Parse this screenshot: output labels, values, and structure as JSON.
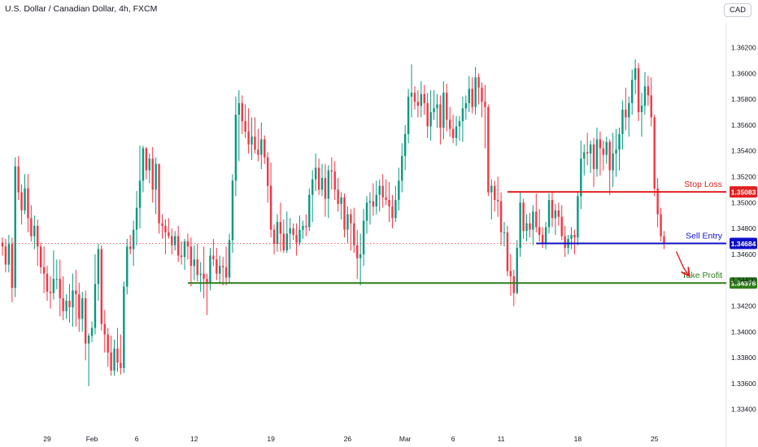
{
  "header": {
    "title": "U.S. Dollar / Canadian Dollar, 4h, FXCM",
    "currency": "CAD"
  },
  "colors": {
    "up": "#089981",
    "down": "#f23645",
    "stop_loss": "#e02020",
    "sell_entry": "#1010c8",
    "take_profit": "#2e7d1a",
    "arrow": "#e02020",
    "current_price_line": "#f23645",
    "axis_text": "#131722"
  },
  "chart_data": {
    "type": "candlestick",
    "symbol": "U.S. Dollar / Canadian Dollar",
    "timeframe": "4h",
    "source": "FXCM",
    "ylim": [
      1.3331,
      1.3631
    ],
    "y_ticks": [
      "1.36200",
      "1.36000",
      "1.35800",
      "1.35600",
      "1.35400",
      "1.35200",
      "1.35000",
      "1.34800",
      "1.34600",
      "1.34400",
      "1.34200",
      "1.34000",
      "1.33800",
      "1.33600",
      "1.33400"
    ],
    "x_ticks": [
      {
        "label": "29",
        "bar": 14
      },
      {
        "label": "Feb",
        "bar": 28
      },
      {
        "label": "6",
        "bar": 42
      },
      {
        "label": "12",
        "bar": 60
      },
      {
        "label": "19",
        "bar": 84
      },
      {
        "label": "26",
        "bar": 108
      },
      {
        "label": "Mar",
        "bar": 126
      },
      {
        "label": "6",
        "bar": 141
      },
      {
        "label": "11",
        "bar": 156
      },
      {
        "label": "18",
        "bar": 180
      },
      {
        "label": "25",
        "bar": 204
      }
    ],
    "levels": [
      {
        "name": "Stop Loss",
        "value": 1.35083,
        "label": "1.35083",
        "start_bar": 158,
        "color_key": "stop_loss"
      },
      {
        "name": "Sell Entry",
        "value": 1.34684,
        "label": "1.34684",
        "start_bar": 167,
        "color_key": "sell_entry"
      },
      {
        "name": "Take Profit",
        "value": 1.34378,
        "label": "1.34378",
        "start_bar": 58,
        "color_key": "take_profit"
      }
    ],
    "current_price": 1.34684,
    "bars": [
      [
        1.3469,
        1.3473,
        1.3459,
        1.3466
      ],
      [
        1.3466,
        1.3472,
        1.3446,
        1.3452
      ],
      [
        1.3452,
        1.3475,
        1.3446,
        1.3468
      ],
      [
        1.3468,
        1.3473,
        1.3423,
        1.3434
      ],
      [
        1.3434,
        1.3535,
        1.3427,
        1.3528
      ],
      [
        1.3528,
        1.3536,
        1.3502,
        1.3508
      ],
      [
        1.3508,
        1.3514,
        1.3483,
        1.3494
      ],
      [
        1.3494,
        1.3522,
        1.3491,
        1.3511
      ],
      [
        1.3511,
        1.3522,
        1.3477,
        1.3488
      ],
      [
        1.3488,
        1.3498,
        1.347,
        1.3474
      ],
      [
        1.3474,
        1.349,
        1.3464,
        1.3482
      ],
      [
        1.3482,
        1.3487,
        1.3451,
        1.3466
      ],
      [
        1.3466,
        1.3469,
        1.3445,
        1.345
      ],
      [
        1.345,
        1.3466,
        1.343,
        1.3445
      ],
      [
        1.3445,
        1.3451,
        1.3424,
        1.3431
      ],
      [
        1.3431,
        1.3443,
        1.3418,
        1.343
      ],
      [
        1.343,
        1.3463,
        1.3425,
        1.3441
      ],
      [
        1.3441,
        1.3456,
        1.3433,
        1.3441
      ],
      [
        1.3441,
        1.3456,
        1.3412,
        1.3426
      ],
      [
        1.3426,
        1.3443,
        1.3409,
        1.3416
      ],
      [
        1.3416,
        1.3429,
        1.341,
        1.3424
      ],
      [
        1.3424,
        1.3437,
        1.3407,
        1.3419
      ],
      [
        1.3419,
        1.3445,
        1.3404,
        1.3432
      ],
      [
        1.3432,
        1.3448,
        1.3404,
        1.3429
      ],
      [
        1.3429,
        1.3438,
        1.34,
        1.341
      ],
      [
        1.341,
        1.3431,
        1.34,
        1.3426
      ],
      [
        1.3426,
        1.3432,
        1.3378,
        1.3391
      ],
      [
        1.3391,
        1.3399,
        1.3358,
        1.3397
      ],
      [
        1.3397,
        1.3408,
        1.3392,
        1.3403
      ],
      [
        1.3403,
        1.346,
        1.3398,
        1.3437
      ],
      [
        1.3437,
        1.3468,
        1.3424,
        1.3464
      ],
      [
        1.3464,
        1.3467,
        1.3401,
        1.3406
      ],
      [
        1.3406,
        1.3417,
        1.3384,
        1.3398
      ],
      [
        1.3398,
        1.3403,
        1.3373,
        1.3384
      ],
      [
        1.3384,
        1.3397,
        1.3366,
        1.337
      ],
      [
        1.337,
        1.3394,
        1.3366,
        1.3387
      ],
      [
        1.3387,
        1.3403,
        1.3369,
        1.3376
      ],
      [
        1.3376,
        1.3398,
        1.3367,
        1.3372
      ],
      [
        1.3372,
        1.3439,
        1.3368,
        1.3435
      ],
      [
        1.3435,
        1.3472,
        1.3429,
        1.3466
      ],
      [
        1.3466,
        1.3475,
        1.346,
        1.3464
      ],
      [
        1.3464,
        1.3486,
        1.3451,
        1.3479
      ],
      [
        1.3479,
        1.3509,
        1.3467,
        1.3496
      ],
      [
        1.3496,
        1.3544,
        1.348,
        1.3517
      ],
      [
        1.3517,
        1.3544,
        1.3508,
        1.3542
      ],
      [
        1.3542,
        1.3543,
        1.3518,
        1.3525
      ],
      [
        1.3525,
        1.3538,
        1.3515,
        1.3534
      ],
      [
        1.3534,
        1.3543,
        1.35,
        1.351
      ],
      [
        1.351,
        1.3535,
        1.3491,
        1.353
      ],
      [
        1.353,
        1.353,
        1.3476,
        1.3484
      ],
      [
        1.3484,
        1.3491,
        1.3472,
        1.3482
      ],
      [
        1.3482,
        1.3487,
        1.346,
        1.3477
      ],
      [
        1.3477,
        1.3488,
        1.3472,
        1.3474
      ],
      [
        1.3474,
        1.348,
        1.346,
        1.3467
      ],
      [
        1.3467,
        1.3478,
        1.3463,
        1.3474
      ],
      [
        1.3474,
        1.3482,
        1.3454,
        1.3459
      ],
      [
        1.3459,
        1.347,
        1.3452,
        1.3458
      ],
      [
        1.3458,
        1.3472,
        1.3448,
        1.347
      ],
      [
        1.347,
        1.3476,
        1.3456,
        1.3466
      ],
      [
        1.3466,
        1.3473,
        1.3435,
        1.3451
      ],
      [
        1.3451,
        1.3467,
        1.344,
        1.3456
      ],
      [
        1.3456,
        1.3468,
        1.3439,
        1.3444
      ],
      [
        1.3444,
        1.3454,
        1.3431,
        1.3445
      ],
      [
        1.3445,
        1.3466,
        1.3426,
        1.3441
      ],
      [
        1.3441,
        1.3445,
        1.3413,
        1.3438
      ],
      [
        1.3438,
        1.3465,
        1.3432,
        1.3459
      ],
      [
        1.3459,
        1.3472,
        1.3451,
        1.3456
      ],
      [
        1.3456,
        1.3465,
        1.344,
        1.3445
      ],
      [
        1.3445,
        1.3459,
        1.3438,
        1.3451
      ],
      [
        1.3451,
        1.3458,
        1.3436,
        1.345
      ],
      [
        1.345,
        1.3466,
        1.3436,
        1.3442
      ],
      [
        1.3442,
        1.3476,
        1.3438,
        1.3471
      ],
      [
        1.3471,
        1.3522,
        1.3461,
        1.3517
      ],
      [
        1.3517,
        1.3582,
        1.3505,
        1.3568
      ],
      [
        1.3568,
        1.3587,
        1.3532,
        1.3577
      ],
      [
        1.3577,
        1.3583,
        1.3553,
        1.3563
      ],
      [
        1.3563,
        1.3576,
        1.355,
        1.3555
      ],
      [
        1.3555,
        1.3573,
        1.3538,
        1.3545
      ],
      [
        1.3545,
        1.3566,
        1.3533,
        1.3551
      ],
      [
        1.3551,
        1.3566,
        1.3538,
        1.3541
      ],
      [
        1.3541,
        1.3557,
        1.3532,
        1.3537
      ],
      [
        1.3537,
        1.3562,
        1.3526,
        1.3549
      ],
      [
        1.3549,
        1.3552,
        1.353,
        1.3535
      ],
      [
        1.3535,
        1.3539,
        1.35,
        1.3513
      ],
      [
        1.3513,
        1.3531,
        1.3473,
        1.3479
      ],
      [
        1.3479,
        1.3483,
        1.346,
        1.3468
      ],
      [
        1.3468,
        1.3491,
        1.3462,
        1.3485
      ],
      [
        1.3485,
        1.35,
        1.3462,
        1.3476
      ],
      [
        1.3476,
        1.3487,
        1.3461,
        1.3463
      ],
      [
        1.3463,
        1.3493,
        1.3461,
        1.3476
      ],
      [
        1.3476,
        1.3488,
        1.3464,
        1.348
      ],
      [
        1.348,
        1.3484,
        1.3471,
        1.3475
      ],
      [
        1.3475,
        1.3484,
        1.3459,
        1.3469
      ],
      [
        1.3469,
        1.349,
        1.3467,
        1.3479
      ],
      [
        1.3479,
        1.3486,
        1.3472,
        1.3482
      ],
      [
        1.3482,
        1.3491,
        1.3474,
        1.3481
      ],
      [
        1.3481,
        1.3511,
        1.3478,
        1.3506
      ],
      [
        1.3506,
        1.3525,
        1.3485,
        1.3518
      ],
      [
        1.3518,
        1.3538,
        1.3509,
        1.3527
      ],
      [
        1.3527,
        1.3534,
        1.3506,
        1.351
      ],
      [
        1.351,
        1.353,
        1.3505,
        1.3519
      ],
      [
        1.3519,
        1.353,
        1.3489,
        1.3503
      ],
      [
        1.3503,
        1.3529,
        1.3488,
        1.3525
      ],
      [
        1.3525,
        1.3535,
        1.351,
        1.3524
      ],
      [
        1.3524,
        1.3532,
        1.3502,
        1.351
      ],
      [
        1.351,
        1.3519,
        1.3493,
        1.3499
      ],
      [
        1.3499,
        1.3508,
        1.3487,
        1.3504
      ],
      [
        1.3504,
        1.3507,
        1.3473,
        1.3479
      ],
      [
        1.3479,
        1.3497,
        1.3469,
        1.3491
      ],
      [
        1.3491,
        1.3495,
        1.3463,
        1.3484
      ],
      [
        1.3484,
        1.3496,
        1.3461,
        1.3467
      ],
      [
        1.3467,
        1.3479,
        1.3441,
        1.3457
      ],
      [
        1.3457,
        1.3476,
        1.3436,
        1.346
      ],
      [
        1.346,
        1.3495,
        1.3451,
        1.3486
      ],
      [
        1.3486,
        1.3505,
        1.3476,
        1.35
      ],
      [
        1.35,
        1.3508,
        1.3483,
        1.3501
      ],
      [
        1.3501,
        1.3515,
        1.349,
        1.3497
      ],
      [
        1.3497,
        1.3517,
        1.3491,
        1.3506
      ],
      [
        1.3506,
        1.3518,
        1.3493,
        1.3513
      ],
      [
        1.3513,
        1.3522,
        1.3496,
        1.3504
      ],
      [
        1.3504,
        1.3518,
        1.3498,
        1.3502
      ],
      [
        1.3502,
        1.3516,
        1.3485,
        1.3497
      ],
      [
        1.3497,
        1.3506,
        1.348,
        1.3488
      ],
      [
        1.3488,
        1.3513,
        1.3485,
        1.3502
      ],
      [
        1.3502,
        1.3527,
        1.3494,
        1.3517
      ],
      [
        1.3517,
        1.3546,
        1.3508,
        1.3536
      ],
      [
        1.3536,
        1.356,
        1.3525,
        1.3553
      ],
      [
        1.3553,
        1.3588,
        1.3546,
        1.3582
      ],
      [
        1.3582,
        1.3607,
        1.3566,
        1.3585
      ],
      [
        1.3585,
        1.359,
        1.3572,
        1.3578
      ],
      [
        1.3578,
        1.3587,
        1.3566,
        1.3575
      ],
      [
        1.3575,
        1.3594,
        1.3566,
        1.3584
      ],
      [
        1.3584,
        1.3591,
        1.3568,
        1.3577
      ],
      [
        1.3577,
        1.3585,
        1.355,
        1.3559
      ],
      [
        1.3559,
        1.3587,
        1.3548,
        1.357
      ],
      [
        1.357,
        1.3587,
        1.3564,
        1.3573
      ],
      [
        1.3573,
        1.3584,
        1.3558,
        1.3576
      ],
      [
        1.3576,
        1.3583,
        1.3545,
        1.3558
      ],
      [
        1.3558,
        1.3594,
        1.3549,
        1.3585
      ],
      [
        1.3585,
        1.3592,
        1.3555,
        1.3564
      ],
      [
        1.3564,
        1.3574,
        1.3551,
        1.3557
      ],
      [
        1.3557,
        1.3568,
        1.3546,
        1.355
      ],
      [
        1.355,
        1.3567,
        1.3544,
        1.3559
      ],
      [
        1.3559,
        1.3567,
        1.3548,
        1.3563
      ],
      [
        1.3563,
        1.3582,
        1.3547,
        1.3573
      ],
      [
        1.3573,
        1.3583,
        1.3564,
        1.3577
      ],
      [
        1.3577,
        1.3598,
        1.357,
        1.3588
      ],
      [
        1.3588,
        1.3597,
        1.3569,
        1.3574
      ],
      [
        1.3574,
        1.3605,
        1.3568,
        1.3597
      ],
      [
        1.3597,
        1.36,
        1.3576,
        1.3589
      ],
      [
        1.3589,
        1.3593,
        1.3566,
        1.3578
      ],
      [
        1.3578,
        1.3591,
        1.3542,
        1.3574
      ],
      [
        1.3574,
        1.3576,
        1.3505,
        1.3508
      ],
      [
        1.3508,
        1.3518,
        1.3487,
        1.3513
      ],
      [
        1.3513,
        1.3517,
        1.3493,
        1.3502
      ],
      [
        1.3502,
        1.352,
        1.3489,
        1.3501
      ],
      [
        1.3501,
        1.3508,
        1.3467,
        1.3477
      ],
      [
        1.3477,
        1.3485,
        1.3466,
        1.3477
      ],
      [
        1.3477,
        1.3482,
        1.3443,
        1.3447
      ],
      [
        1.3447,
        1.346,
        1.3428,
        1.3443
      ],
      [
        1.3443,
        1.3448,
        1.342,
        1.343
      ],
      [
        1.343,
        1.3471,
        1.3429,
        1.3465
      ],
      [
        1.3465,
        1.3508,
        1.3458,
        1.35
      ],
      [
        1.35,
        1.3503,
        1.3472,
        1.3478
      ],
      [
        1.3478,
        1.3491,
        1.347,
        1.3484
      ],
      [
        1.3484,
        1.3492,
        1.3473,
        1.3479
      ],
      [
        1.3479,
        1.3498,
        1.3467,
        1.3493
      ],
      [
        1.3493,
        1.3507,
        1.3477,
        1.3481
      ],
      [
        1.3481,
        1.3495,
        1.347,
        1.3475
      ],
      [
        1.3475,
        1.3481,
        1.3465,
        1.3469
      ],
      [
        1.3469,
        1.3485,
        1.3464,
        1.3481
      ],
      [
        1.3481,
        1.3507,
        1.3476,
        1.3502
      ],
      [
        1.3502,
        1.3509,
        1.3481,
        1.3488
      ],
      [
        1.3488,
        1.3499,
        1.3475,
        1.3494
      ],
      [
        1.3494,
        1.35,
        1.3482,
        1.3489
      ],
      [
        1.3489,
        1.3498,
        1.3471,
        1.3474
      ],
      [
        1.3474,
        1.3482,
        1.3458,
        1.3465
      ],
      [
        1.3465,
        1.3475,
        1.346,
        1.3472
      ],
      [
        1.3472,
        1.3481,
        1.3464,
        1.3475
      ],
      [
        1.3475,
        1.3479,
        1.346,
        1.3473
      ],
      [
        1.3473,
        1.3509,
        1.3467,
        1.3505
      ],
      [
        1.3505,
        1.3548,
        1.3495,
        1.3534
      ],
      [
        1.3534,
        1.3545,
        1.3521,
        1.3539
      ],
      [
        1.3539,
        1.3554,
        1.3529,
        1.3538
      ],
      [
        1.3538,
        1.3548,
        1.3523,
        1.3545
      ],
      [
        1.3545,
        1.355,
        1.3512,
        1.3526
      ],
      [
        1.3526,
        1.3558,
        1.352,
        1.3549
      ],
      [
        1.3549,
        1.3555,
        1.3521,
        1.3542
      ],
      [
        1.3542,
        1.3548,
        1.3525,
        1.3537
      ],
      [
        1.3537,
        1.3551,
        1.353,
        1.3547
      ],
      [
        1.3547,
        1.3549,
        1.3506,
        1.3525
      ],
      [
        1.3525,
        1.3554,
        1.3512,
        1.3538
      ],
      [
        1.3538,
        1.3557,
        1.352,
        1.3541
      ],
      [
        1.3541,
        1.3558,
        1.3525,
        1.3553
      ],
      [
        1.3553,
        1.3579,
        1.3541,
        1.3572
      ],
      [
        1.3572,
        1.3589,
        1.3556,
        1.3566
      ],
      [
        1.3566,
        1.3582,
        1.3551,
        1.3577
      ],
      [
        1.3577,
        1.3603,
        1.3568,
        1.3595
      ],
      [
        1.3595,
        1.3611,
        1.3584,
        1.3604
      ],
      [
        1.3604,
        1.3608,
        1.3563,
        1.357
      ],
      [
        1.357,
        1.3585,
        1.3551,
        1.3575
      ],
      [
        1.3575,
        1.3601,
        1.3568,
        1.359
      ],
      [
        1.359,
        1.3598,
        1.3575,
        1.3583
      ],
      [
        1.3583,
        1.3597,
        1.3559,
        1.3566
      ],
      [
        1.3566,
        1.3568,
        1.3505,
        1.3511
      ],
      [
        1.3511,
        1.3519,
        1.3481,
        1.3491
      ],
      [
        1.3491,
        1.3496,
        1.347,
        1.3474
      ],
      [
        1.3474,
        1.3478,
        1.3464,
        1.3468
      ]
    ]
  }
}
